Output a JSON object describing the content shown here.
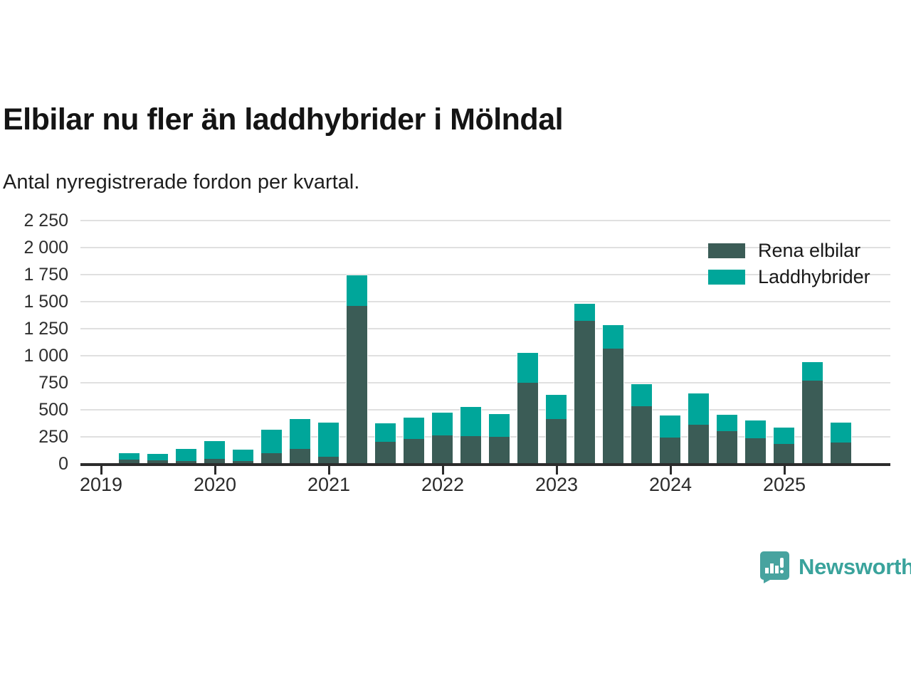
{
  "title": "Elbilar nu fler än laddhybrider i Mölndal",
  "subtitle": "Antal nyregistrerade fordon per kvartal.",
  "brand": "Newsworthy",
  "colors": {
    "rena_elbilar": "#3b5c56",
    "laddhybrider": "#00a69a",
    "brand_teal": "#47a39f",
    "axis": "#2c2c2c",
    "grid": "#e0e0e0"
  },
  "chart_data": {
    "type": "bar",
    "stacked": true,
    "title": "Elbilar nu fler än laddhybrider i Mölndal",
    "subtitle": "Antal nyregistrerade fordon per kvartal.",
    "xlabel": "",
    "ylabel": "Antal nyregistrerade fordon per kvartal",
    "ylim": [
      0,
      2250
    ],
    "grid": "horizontal",
    "legend_position": "top-right",
    "y_ticks": [
      {
        "value": 0,
        "label": "0"
      },
      {
        "value": 250,
        "label": "250"
      },
      {
        "value": 500,
        "label": "500"
      },
      {
        "value": 750,
        "label": "750"
      },
      {
        "value": 1000,
        "label": "1 000"
      },
      {
        "value": 1250,
        "label": "1 250"
      },
      {
        "value": 1500,
        "label": "1 500"
      },
      {
        "value": 1750,
        "label": "1 750"
      },
      {
        "value": 2000,
        "label": "2 000"
      },
      {
        "value": 2250,
        "label": "2 250"
      }
    ],
    "x_year_labels": [
      "2019",
      "2020",
      "2021",
      "2022",
      "2023",
      "2024",
      "2025"
    ],
    "categories": [
      "2019 Q2",
      "2019 Q3",
      "2019 Q4",
      "2020 Q1",
      "2020 Q2",
      "2020 Q3",
      "2020 Q4",
      "2021 Q1",
      "2021 Q2",
      "2021 Q3",
      "2021 Q4",
      "2022 Q1",
      "2022 Q2",
      "2022 Q3",
      "2022 Q4",
      "2023 Q1",
      "2023 Q2",
      "2023 Q3",
      "2023 Q4",
      "2024 Q1",
      "2024 Q2",
      "2024 Q3",
      "2024 Q4",
      "2025 Q1",
      "2025 Q2",
      "2025 Q3"
    ],
    "series": [
      {
        "name": "Rena elbilar",
        "color": "#3b5c56",
        "values": [
          40,
          35,
          25,
          45,
          30,
          100,
          140,
          70,
          1465,
          205,
          235,
          265,
          260,
          255,
          755,
          420,
          1330,
          1070,
          535,
          245,
          365,
          310,
          240,
          190,
          775,
          200
        ]
      },
      {
        "name": "Laddhybrider",
        "color": "#00a69a",
        "values": [
          65,
          65,
          120,
          175,
          105,
          225,
          280,
          315,
          285,
          175,
          200,
          215,
          275,
          210,
          275,
          225,
          160,
          220,
          210,
          210,
          295,
          150,
          170,
          150,
          170,
          190
        ]
      }
    ]
  }
}
